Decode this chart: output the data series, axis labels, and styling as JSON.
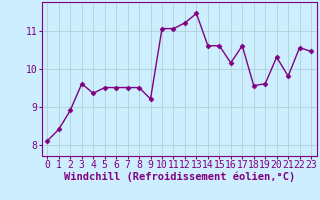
{
  "x": [
    0,
    1,
    2,
    3,
    4,
    5,
    6,
    7,
    8,
    9,
    10,
    11,
    12,
    13,
    14,
    15,
    16,
    17,
    18,
    19,
    20,
    21,
    22,
    23
  ],
  "y": [
    8.1,
    8.4,
    8.9,
    9.6,
    9.35,
    9.5,
    9.5,
    9.5,
    9.5,
    9.2,
    11.05,
    11.05,
    11.2,
    11.45,
    10.6,
    10.6,
    10.15,
    10.6,
    9.55,
    9.6,
    10.3,
    9.8,
    10.55,
    10.45
  ],
  "line_color": "#800080",
  "marker": "D",
  "marker_size": 2.5,
  "bg_color": "#cceeff",
  "grid_color": "#aacccc",
  "xlabel": "Windchill (Refroidissement éolien,°C)",
  "yticks": [
    8,
    9,
    10,
    11
  ],
  "xticks": [
    0,
    1,
    2,
    3,
    4,
    5,
    6,
    7,
    8,
    9,
    10,
    11,
    12,
    13,
    14,
    15,
    16,
    17,
    18,
    19,
    20,
    21,
    22,
    23
  ],
  "xlim": [
    -0.5,
    23.5
  ],
  "ylim": [
    7.7,
    11.75
  ],
  "xlabel_fontsize": 7.5,
  "tick_fontsize": 7,
  "line_width": 1.0
}
